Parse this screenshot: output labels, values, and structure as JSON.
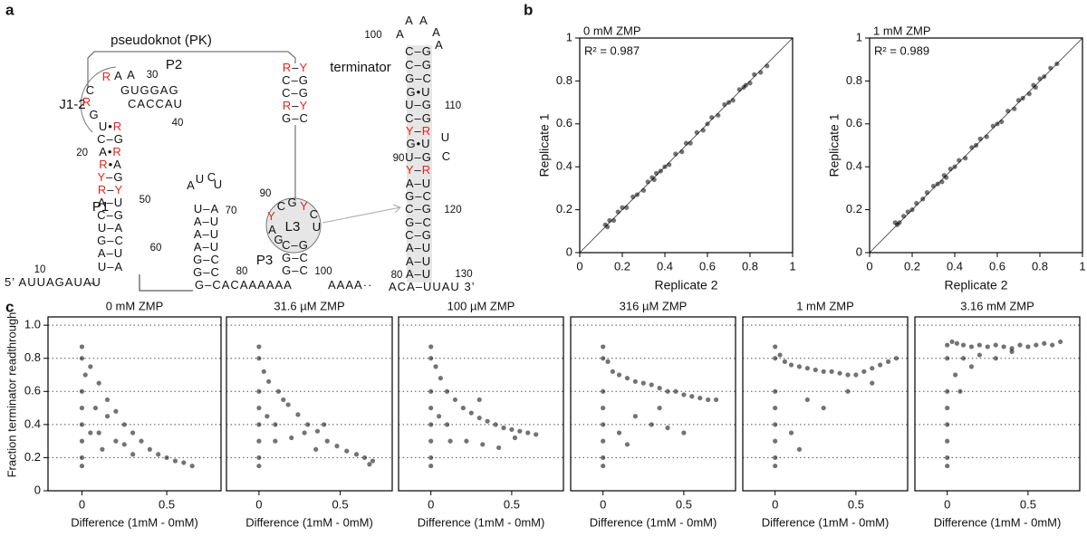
{
  "panel_labels": [
    "a",
    "b",
    "c"
  ],
  "diagram": {
    "texts": [
      "pseudoknot (PK)",
      "J1-2",
      "P2",
      "P1",
      "P3",
      "L3",
      "terminator",
      "30",
      "40",
      "20",
      "50",
      "70",
      "60",
      "10",
      "80",
      "90",
      "100",
      "100",
      "110",
      "90",
      "120",
      "80",
      "130",
      "R",
      "A",
      "A",
      "C",
      "R",
      "G",
      "GUGGAG",
      "CACCAU",
      "U•R",
      "C–G",
      "A•R",
      "R•A",
      "Y–G",
      "R–Y",
      "A–U",
      "C–G",
      "U–A",
      "G–C",
      "A–U",
      "U–A",
      "A",
      "U",
      "C",
      "U",
      "U–A",
      "A–U",
      "A–U",
      "A–U",
      "G–C",
      "G–C",
      "5’ AUUAGAUAU",
      "G–CACAAAAAA",
      "AAAA··",
      "R–Y",
      "C–G",
      "C–G",
      "R–Y",
      "G–C",
      "Y",
      "C",
      "G",
      "Y",
      "C",
      "U",
      "A",
      "G",
      "C–G",
      "G–C",
      "G–C",
      "A",
      "A",
      "A",
      "A",
      "A",
      "C–G",
      "C–G",
      "G–C",
      "G•U",
      "U–G",
      "C–G",
      "Y–R",
      "G•U",
      "U–G",
      "Y–R",
      "A–U",
      "G–C",
      "C–G",
      "G–C",
      "C–G",
      "A–U",
      "A–U",
      "A–U",
      "U",
      "C",
      "ACA–UUAU 3’"
    ]
  },
  "chart_data": [
    {
      "type": "scatter",
      "title": "0 mM ZMP",
      "annotation": "R² = 0.987",
      "x_label": "Replicate 2",
      "y_label": "Replicate 1",
      "xlim": [
        0,
        1
      ],
      "ylim": [
        0,
        1
      ],
      "xticks": [
        0,
        0.2,
        0.4,
        0.6,
        0.8,
        1
      ],
      "yticks": [
        0,
        0.2,
        0.4,
        0.6,
        0.8,
        1
      ],
      "diagonal": true,
      "color": "#000000",
      "x": [
        0.12,
        0.13,
        0.14,
        0.16,
        0.18,
        0.2,
        0.22,
        0.25,
        0.27,
        0.3,
        0.32,
        0.34,
        0.35,
        0.36,
        0.38,
        0.4,
        0.42,
        0.45,
        0.48,
        0.5,
        0.52,
        0.55,
        0.58,
        0.6,
        0.62,
        0.65,
        0.68,
        0.7,
        0.72,
        0.75,
        0.77,
        0.78,
        0.8,
        0.82,
        0.85,
        0.88
      ],
      "values": [
        0.13,
        0.12,
        0.15,
        0.15,
        0.19,
        0.21,
        0.21,
        0.26,
        0.27,
        0.29,
        0.33,
        0.35,
        0.34,
        0.37,
        0.38,
        0.4,
        0.41,
        0.46,
        0.47,
        0.51,
        0.51,
        0.56,
        0.57,
        0.6,
        0.63,
        0.64,
        0.69,
        0.7,
        0.71,
        0.76,
        0.77,
        0.78,
        0.79,
        0.83,
        0.84,
        0.87
      ]
    },
    {
      "type": "scatter",
      "title": "1 mM ZMP",
      "annotation": "R² = 0.989",
      "x_label": "Replicate 2",
      "y_label": "Replicate 1",
      "xlim": [
        0,
        1
      ],
      "ylim": [
        0,
        1
      ],
      "xticks": [
        0,
        0.2,
        0.4,
        0.6,
        0.8,
        1
      ],
      "yticks": [
        0,
        0.2,
        0.4,
        0.6,
        0.8,
        1
      ],
      "diagonal": true,
      "color": "#000000",
      "x": [
        0.12,
        0.13,
        0.14,
        0.16,
        0.18,
        0.2,
        0.22,
        0.25,
        0.27,
        0.3,
        0.32,
        0.34,
        0.35,
        0.36,
        0.38,
        0.4,
        0.42,
        0.45,
        0.48,
        0.5,
        0.52,
        0.55,
        0.58,
        0.6,
        0.62,
        0.65,
        0.68,
        0.7,
        0.72,
        0.75,
        0.77,
        0.78,
        0.8,
        0.82,
        0.85,
        0.88
      ],
      "values": [
        0.14,
        0.13,
        0.14,
        0.17,
        0.19,
        0.2,
        0.23,
        0.25,
        0.28,
        0.31,
        0.32,
        0.33,
        0.36,
        0.35,
        0.39,
        0.4,
        0.43,
        0.44,
        0.49,
        0.5,
        0.53,
        0.54,
        0.59,
        0.6,
        0.61,
        0.66,
        0.67,
        0.71,
        0.72,
        0.74,
        0.78,
        0.77,
        0.81,
        0.82,
        0.86,
        0.88
      ]
    },
    {
      "type": "scatter",
      "title": "0 mM ZMP",
      "x_label": "Difference (1mM - 0mM)",
      "y_label": "Fraction terminator readthrough",
      "xlim": [
        -0.2,
        0.82
      ],
      "ylim": [
        0,
        1.05
      ],
      "xticks": [
        0,
        0.5
      ],
      "yticks": [
        0,
        0.2,
        0.4,
        0.6,
        0.8,
        {
          "value": 1,
          "label": "1.0"
        }
      ],
      "grid": true,
      "color": "#000000",
      "x": [
        0,
        0,
        0,
        0,
        0,
        0,
        0,
        0,
        0.02,
        0.05,
        0.1,
        0.15,
        0.2,
        0.25,
        0.3,
        0.35,
        0.4,
        0.45,
        0.5,
        0.55,
        0.6,
        0.65,
        0.1,
        0.2,
        0.3,
        0.15,
        0.25,
        0.05,
        0.08,
        0.12
      ],
      "values": [
        0.15,
        0.2,
        0.3,
        0.4,
        0.5,
        0.6,
        0.8,
        0.87,
        0.7,
        0.75,
        0.65,
        0.55,
        0.48,
        0.4,
        0.35,
        0.3,
        0.25,
        0.22,
        0.2,
        0.18,
        0.17,
        0.15,
        0.35,
        0.3,
        0.22,
        0.45,
        0.28,
        0.35,
        0.5,
        0.25
      ]
    },
    {
      "type": "scatter",
      "title": "31.6 µM ZMP",
      "x_label": "Difference (1mM - 0mM)",
      "xlim": [
        -0.2,
        0.82
      ],
      "ylim": [
        0,
        1.05
      ],
      "xticks": [
        0,
        0.5
      ],
      "grid": true,
      "color": "#000000",
      "x": [
        0,
        0,
        0,
        0,
        0,
        0,
        0,
        0,
        0.03,
        0.06,
        0.12,
        0.18,
        0.24,
        0.3,
        0.36,
        0.42,
        0.48,
        0.54,
        0.6,
        0.65,
        0.7,
        0.68,
        0.1,
        0.2,
        0.35,
        0.15,
        0.28,
        0.05,
        0.1,
        0.4
      ],
      "values": [
        0.15,
        0.2,
        0.3,
        0.4,
        0.5,
        0.6,
        0.8,
        0.87,
        0.72,
        0.66,
        0.6,
        0.52,
        0.46,
        0.4,
        0.36,
        0.3,
        0.27,
        0.24,
        0.22,
        0.2,
        0.18,
        0.16,
        0.4,
        0.32,
        0.25,
        0.55,
        0.35,
        0.45,
        0.3,
        0.4
      ]
    },
    {
      "type": "scatter",
      "title": "100 µM ZMP",
      "x_label": "Difference (1mM - 0mM)",
      "xlim": [
        -0.2,
        0.82
      ],
      "ylim": [
        0,
        1.05
      ],
      "xticks": [
        0,
        0.5
      ],
      "grid": true,
      "color": "#000000",
      "x": [
        0,
        0,
        0,
        0,
        0,
        0,
        0,
        0,
        0.03,
        0.06,
        0.1,
        0.15,
        0.2,
        0.25,
        0.3,
        0.35,
        0.4,
        0.45,
        0.5,
        0.55,
        0.6,
        0.65,
        0.12,
        0.22,
        0.32,
        0.42,
        0.52,
        0.05,
        0.1,
        0.3
      ],
      "values": [
        0.15,
        0.2,
        0.3,
        0.4,
        0.5,
        0.6,
        0.8,
        0.87,
        0.75,
        0.68,
        0.6,
        0.55,
        0.5,
        0.47,
        0.44,
        0.42,
        0.4,
        0.38,
        0.37,
        0.36,
        0.35,
        0.34,
        0.3,
        0.3,
        0.28,
        0.26,
        0.32,
        0.45,
        0.4,
        0.55
      ]
    },
    {
      "type": "scatter",
      "title": "316 µM ZMP",
      "x_label": "Difference (1mM - 0mM)",
      "xlim": [
        -0.2,
        0.82
      ],
      "ylim": [
        0,
        1.05
      ],
      "xticks": [
        0,
        0.5
      ],
      "grid": true,
      "color": "#000000",
      "x": [
        0,
        0,
        0,
        0,
        0,
        0,
        0,
        0,
        0.03,
        0.06,
        0.1,
        0.15,
        0.2,
        0.25,
        0.3,
        0.35,
        0.4,
        0.45,
        0.5,
        0.55,
        0.6,
        0.65,
        0.7,
        0.2,
        0.3,
        0.4,
        0.5,
        0.1,
        0.15,
        0.35
      ],
      "values": [
        0.15,
        0.2,
        0.3,
        0.4,
        0.5,
        0.6,
        0.8,
        0.87,
        0.78,
        0.72,
        0.7,
        0.68,
        0.66,
        0.65,
        0.64,
        0.62,
        0.6,
        0.6,
        0.58,
        0.57,
        0.56,
        0.55,
        0.55,
        0.45,
        0.4,
        0.38,
        0.35,
        0.35,
        0.28,
        0.5
      ]
    },
    {
      "type": "scatter",
      "title": "1 mM ZMP",
      "x_label": "Difference (1mM - 0mM)",
      "xlim": [
        -0.2,
        0.82
      ],
      "ylim": [
        0,
        1.05
      ],
      "xticks": [
        0,
        0.5
      ],
      "grid": true,
      "color": "#000000",
      "x": [
        0,
        0,
        0,
        0,
        0,
        0,
        0,
        0,
        0.03,
        0.06,
        0.1,
        0.15,
        0.2,
        0.25,
        0.3,
        0.35,
        0.4,
        0.45,
        0.5,
        0.55,
        0.6,
        0.65,
        0.7,
        0.75,
        0.2,
        0.3,
        0.45,
        0.1,
        0.15,
        0.6
      ],
      "values": [
        0.15,
        0.2,
        0.3,
        0.4,
        0.5,
        0.6,
        0.8,
        0.87,
        0.82,
        0.78,
        0.76,
        0.75,
        0.74,
        0.73,
        0.72,
        0.72,
        0.71,
        0.7,
        0.7,
        0.72,
        0.74,
        0.76,
        0.78,
        0.8,
        0.55,
        0.5,
        0.6,
        0.35,
        0.25,
        0.65
      ]
    },
    {
      "type": "scatter",
      "title": "3.16 mM ZMP",
      "x_label": "Difference (1mM - 0mM)",
      "xlim": [
        -0.2,
        0.82
      ],
      "ylim": [
        0,
        1.05
      ],
      "xticks": [
        0,
        0.5
      ],
      "grid": true,
      "color": "#000000",
      "x": [
        0,
        0,
        0,
        0,
        0,
        0,
        0,
        0,
        0.03,
        0.06,
        0.1,
        0.15,
        0.2,
        0.25,
        0.3,
        0.35,
        0.4,
        0.45,
        0.5,
        0.55,
        0.6,
        0.65,
        0.7,
        0.05,
        0.1,
        0.2,
        0.3,
        0.08,
        0.15,
        0.4
      ],
      "values": [
        0.15,
        0.2,
        0.3,
        0.4,
        0.5,
        0.6,
        0.8,
        0.88,
        0.9,
        0.89,
        0.88,
        0.87,
        0.88,
        0.87,
        0.88,
        0.87,
        0.86,
        0.88,
        0.87,
        0.88,
        0.89,
        0.88,
        0.9,
        0.7,
        0.8,
        0.82,
        0.8,
        0.6,
        0.75,
        0.84
      ]
    }
  ]
}
